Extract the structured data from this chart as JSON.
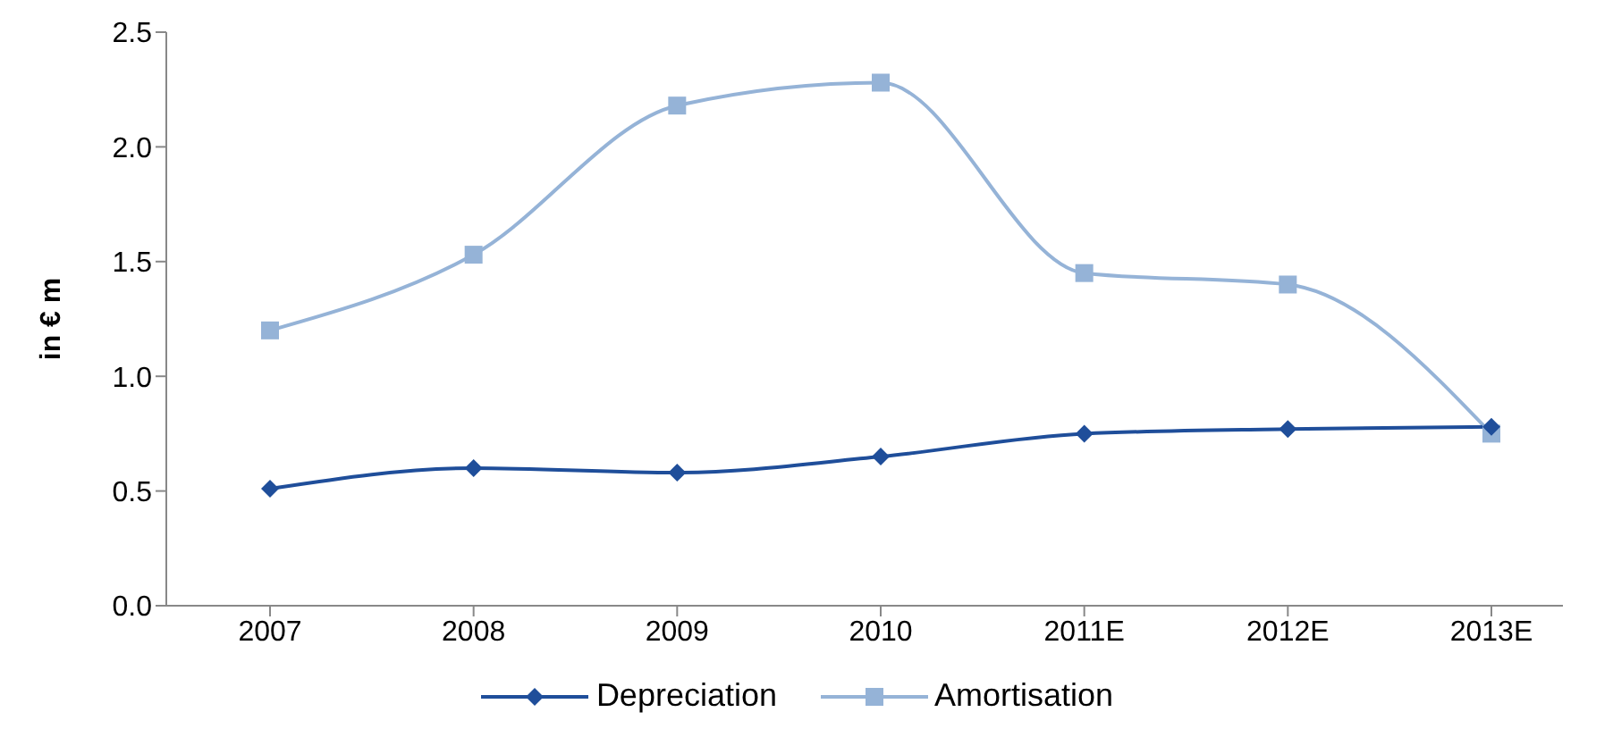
{
  "chart_data": {
    "type": "line",
    "ylabel": "in € m",
    "categories": [
      "2007",
      "2008",
      "2009",
      "2010",
      "2011E",
      "2012E",
      "2013E"
    ],
    "series": [
      {
        "name": "Depreciation",
        "color": "#1f4e9a",
        "marker": "diamond",
        "values": [
          0.51,
          0.6,
          0.58,
          0.65,
          0.75,
          0.77,
          0.78
        ]
      },
      {
        "name": "Amortisation",
        "color": "#95b3d7",
        "marker": "square",
        "values": [
          1.2,
          1.53,
          2.18,
          2.28,
          1.45,
          1.4,
          0.75
        ]
      }
    ],
    "ylim": [
      0,
      2.5
    ],
    "yticks": [
      {
        "value": 0,
        "label": "0.0"
      },
      {
        "value": 0.5,
        "label": "0.5"
      },
      {
        "value": 1,
        "label": "1.0"
      },
      {
        "value": 1.5,
        "label": "1.5"
      },
      {
        "value": 2,
        "label": "2.0"
      },
      {
        "value": 2.5,
        "label": "2.5"
      }
    ],
    "grid": false,
    "legend": "bottom",
    "line_style": "solid"
  }
}
